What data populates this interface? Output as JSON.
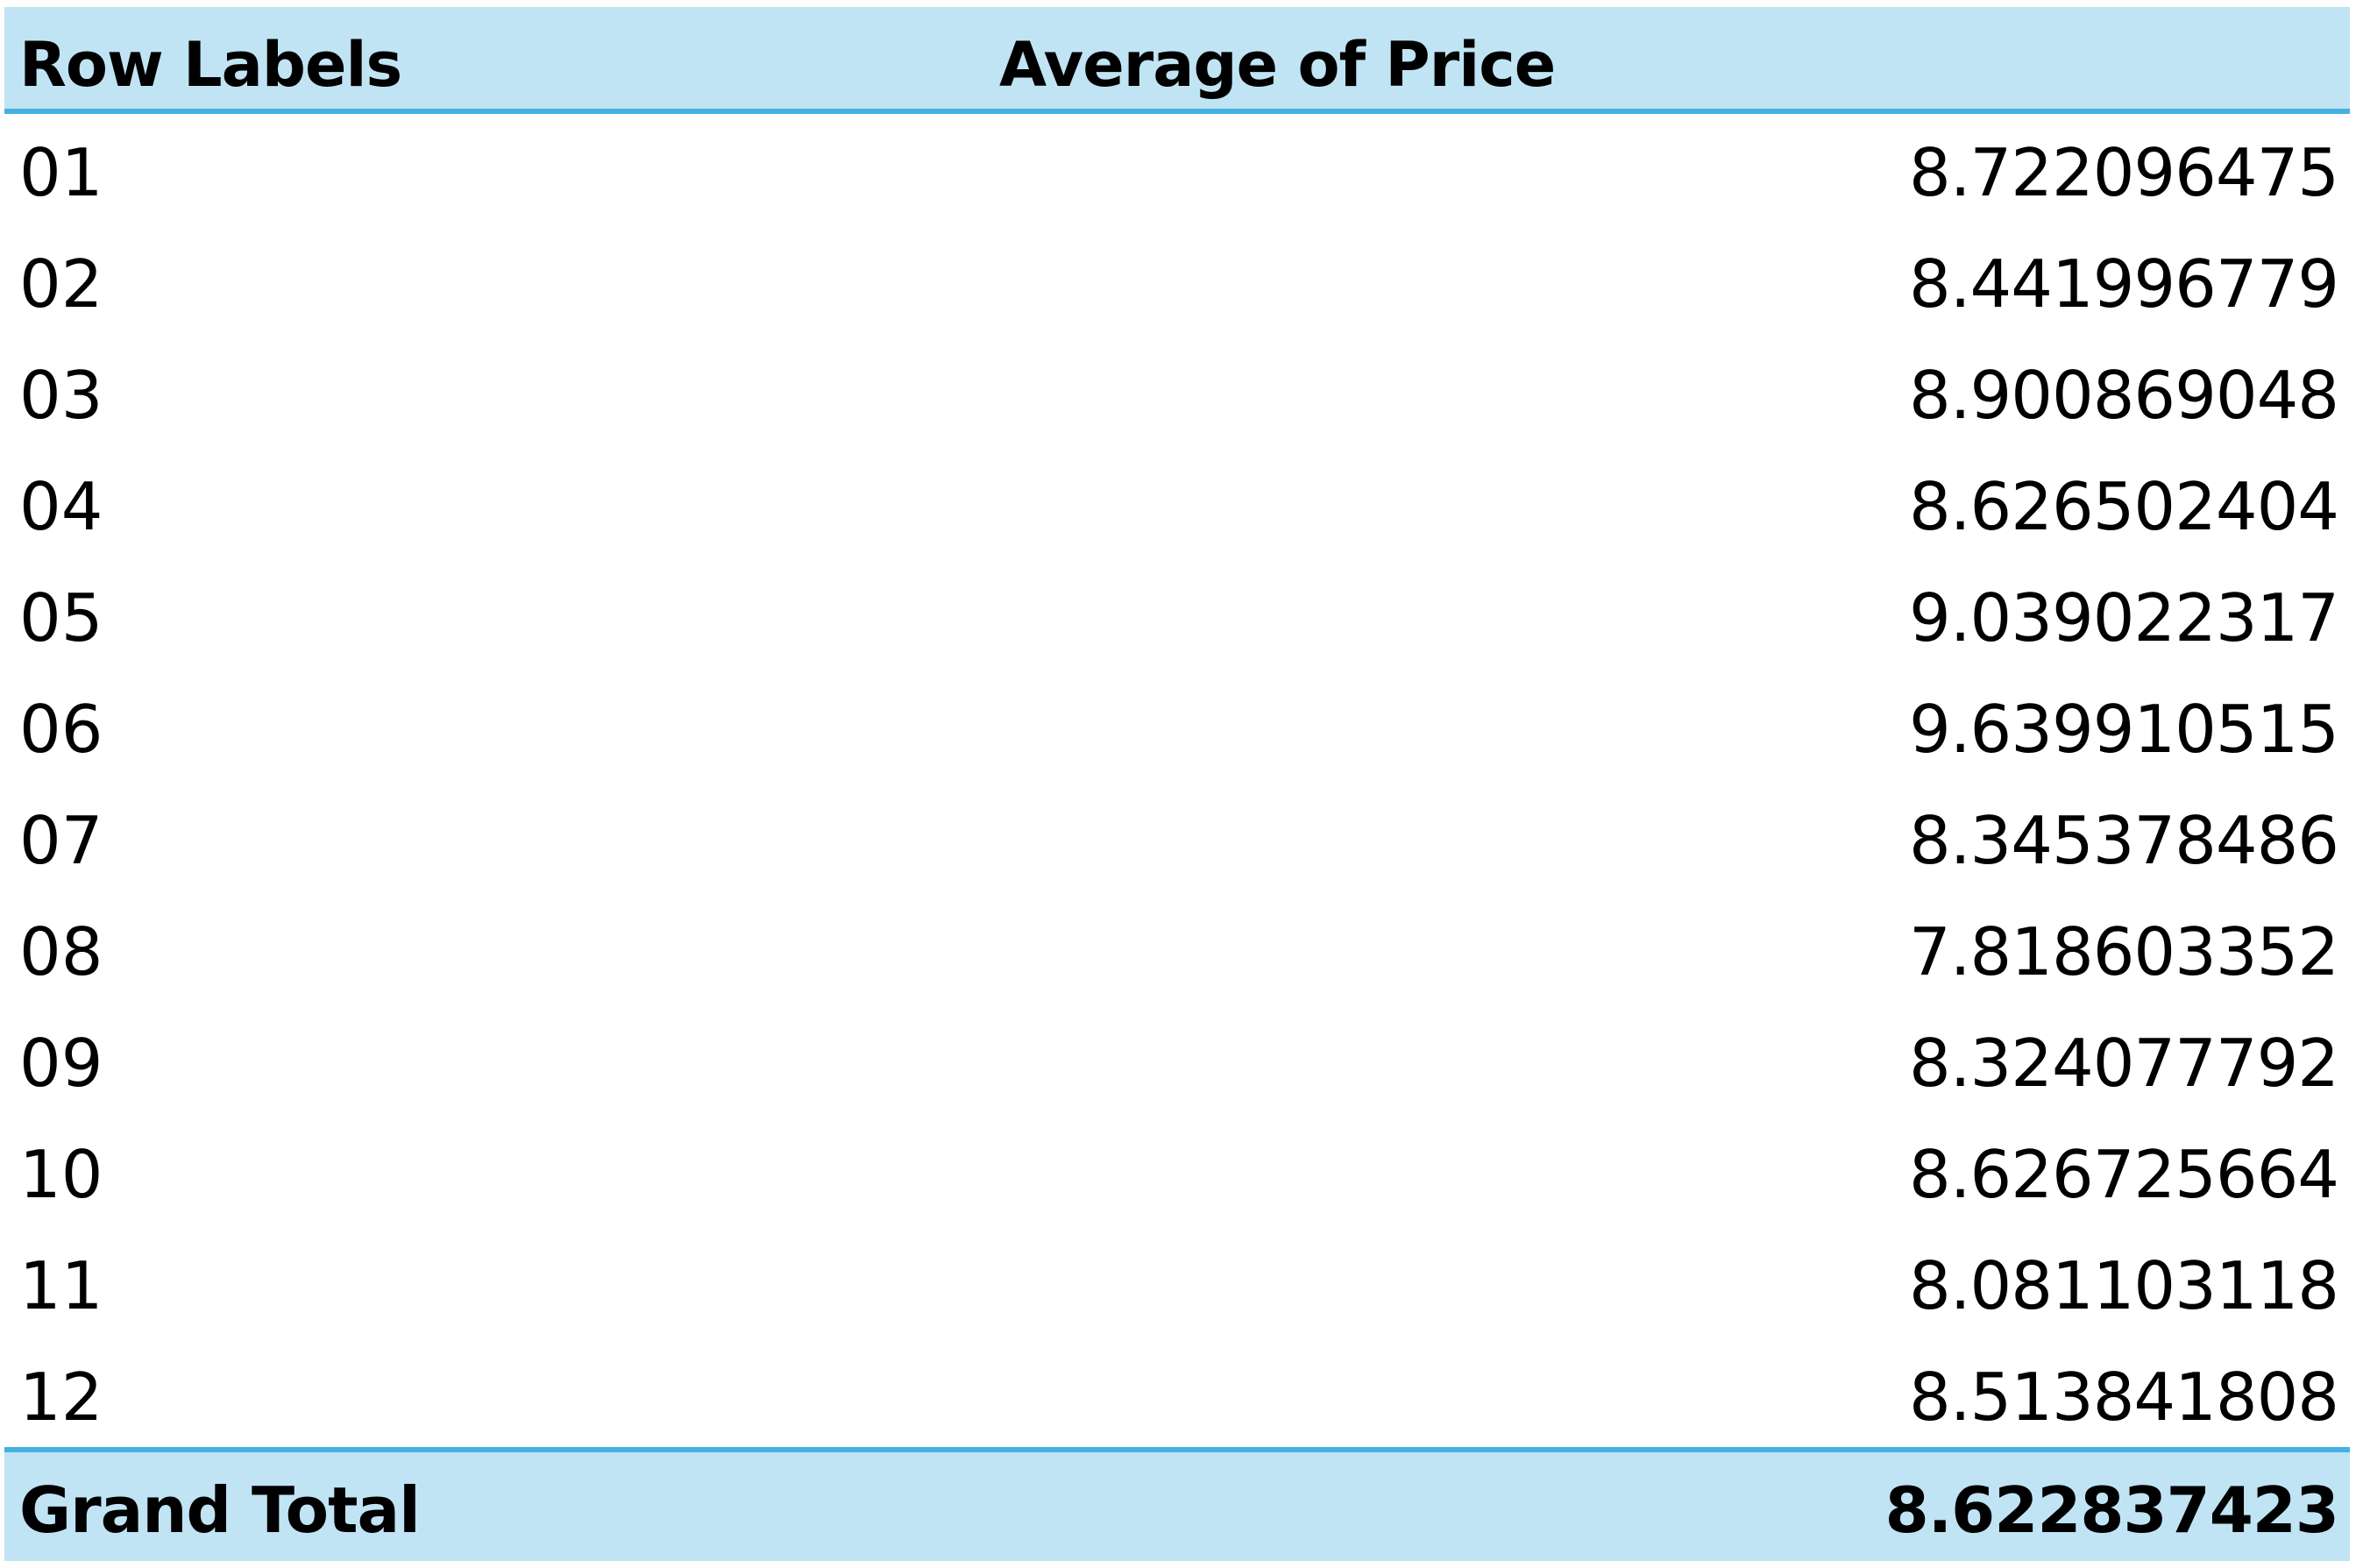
{
  "pivot_table": {
    "header": {
      "row_labels": "Row Labels",
      "value_field": "Average of Price"
    },
    "rows": [
      {
        "label": "01",
        "value": "8.722096475"
      },
      {
        "label": "02",
        "value": "8.441996779"
      },
      {
        "label": "03",
        "value": "8.900869048"
      },
      {
        "label": "04",
        "value": "8.626502404"
      },
      {
        "label": "05",
        "value": "9.039022317"
      },
      {
        "label": "06",
        "value": "9.639910515"
      },
      {
        "label": "07",
        "value": "8.345378486"
      },
      {
        "label": "08",
        "value": "7.818603352"
      },
      {
        "label": "09",
        "value": "8.324077792"
      },
      {
        "label": "10",
        "value": "8.626725664"
      },
      {
        "label": "11",
        "value": "8.081103118"
      },
      {
        "label": "12",
        "value": "8.513841808"
      }
    ],
    "grand_total": {
      "label": "Grand Total",
      "value": "8.622837423"
    },
    "colors": {
      "header_fill": "#c0e4f4",
      "accent_border": "#45b0e1"
    }
  }
}
